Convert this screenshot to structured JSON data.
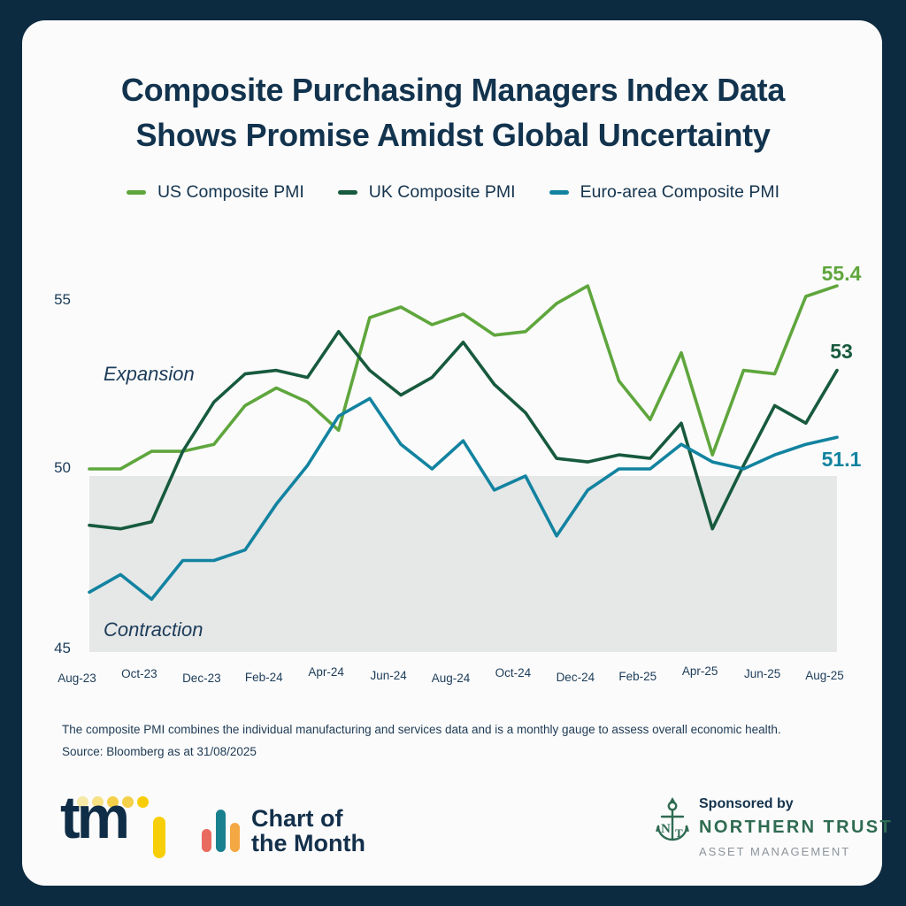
{
  "colors": {
    "background_navy": "#0d2b40",
    "card_background": "#fbfbfb",
    "text_navy": "#15344e",
    "shaded_band": "#e6e7e7"
  },
  "title": {
    "line1": "Composite Purchasing Managers Index Data",
    "line2": "Shows Promise Amidst Global Uncertainty"
  },
  "chart_data": {
    "type": "line",
    "x": [
      "Aug-23",
      "Sep-23",
      "Oct-23",
      "Nov-23",
      "Dec-23",
      "Jan-24",
      "Feb-24",
      "Mar-24",
      "Apr-24",
      "May-24",
      "Jun-24",
      "Jul-24",
      "Aug-24",
      "Sep-24",
      "Oct-24",
      "Nov-24",
      "Dec-24",
      "Jan-25",
      "Feb-25",
      "Mar-25",
      "Apr-25",
      "May-25",
      "Jun-25",
      "Jul-25",
      "Aug-25"
    ],
    "x_tick_labels": [
      "Aug-23",
      "Oct-23",
      "Dec-23",
      "Feb-24",
      "Apr-24",
      "Jun-24",
      "Aug-24",
      "Oct-24",
      "Dec-24",
      "Feb-25",
      "Apr-25",
      "Jun-25",
      "Aug-25"
    ],
    "series": [
      {
        "name": "US Composite PMI",
        "color": "#5fa63d",
        "end_label": "55.4",
        "values": [
          50.2,
          50.2,
          50.7,
          50.7,
          50.9,
          52.0,
          52.5,
          52.1,
          51.3,
          54.5,
          54.8,
          54.3,
          54.6,
          54.0,
          54.1,
          54.9,
          55.4,
          52.7,
          51.6,
          53.5,
          50.6,
          53.0,
          52.9,
          55.1,
          55.4
        ]
      },
      {
        "name": "UK Composite PMI",
        "color": "#175a3e",
        "end_label": "53",
        "values": [
          48.6,
          48.5,
          48.7,
          50.7,
          52.1,
          52.9,
          53.0,
          52.8,
          54.1,
          53.0,
          52.3,
          52.8,
          53.8,
          52.6,
          51.8,
          50.5,
          50.4,
          50.6,
          50.5,
          51.5,
          48.5,
          50.3,
          52.0,
          51.5,
          53.0
        ]
      },
      {
        "name": "Euro-area Composite PMI",
        "color": "#1283a0",
        "end_label": "51.1",
        "values": [
          46.7,
          47.2,
          46.5,
          47.6,
          47.6,
          47.9,
          49.2,
          50.3,
          51.7,
          52.2,
          50.9,
          50.2,
          51.0,
          49.6,
          50.0,
          48.3,
          49.6,
          50.2,
          50.2,
          50.9,
          50.4,
          50.2,
          50.6,
          50.9,
          51.1
        ]
      }
    ],
    "y_ticks": [
      55,
      50,
      45
    ],
    "ylim": [
      44.7,
      56.2
    ],
    "grid": false,
    "legend_position": "top",
    "shaded_region": {
      "from": 45,
      "to": 50,
      "color": "#e6e7e7"
    },
    "annotations": [
      {
        "text": "Expansion"
      },
      {
        "text": "Contraction"
      }
    ]
  },
  "footnote": {
    "line1": "The composite PMI combines the individual manufacturing and services data and is a monthly gauge to assess overall economic health.",
    "line2": "Source: Bloomberg as at 31/08/2025"
  },
  "footer": {
    "tmi": {
      "brand": "tmi",
      "letters": "tm",
      "navy": "#0f2d47",
      "i_color": "#f6cf08",
      "dot_colors": [
        "#f6e8a6",
        "#f7e184",
        "#f4cf4a",
        "#f4cf4a",
        "#f8cd05"
      ]
    },
    "chart_of_month": {
      "line1": "Chart of",
      "line2": "the Month",
      "bar_colors": [
        "#e96a5f",
        "#18808f",
        "#f4a843"
      ]
    },
    "sponsor": {
      "prefix": "Sponsored by",
      "name": "NORTHERN TRUST",
      "division": "ASSET MANAGEMENT",
      "green": "#2f6b52"
    }
  }
}
